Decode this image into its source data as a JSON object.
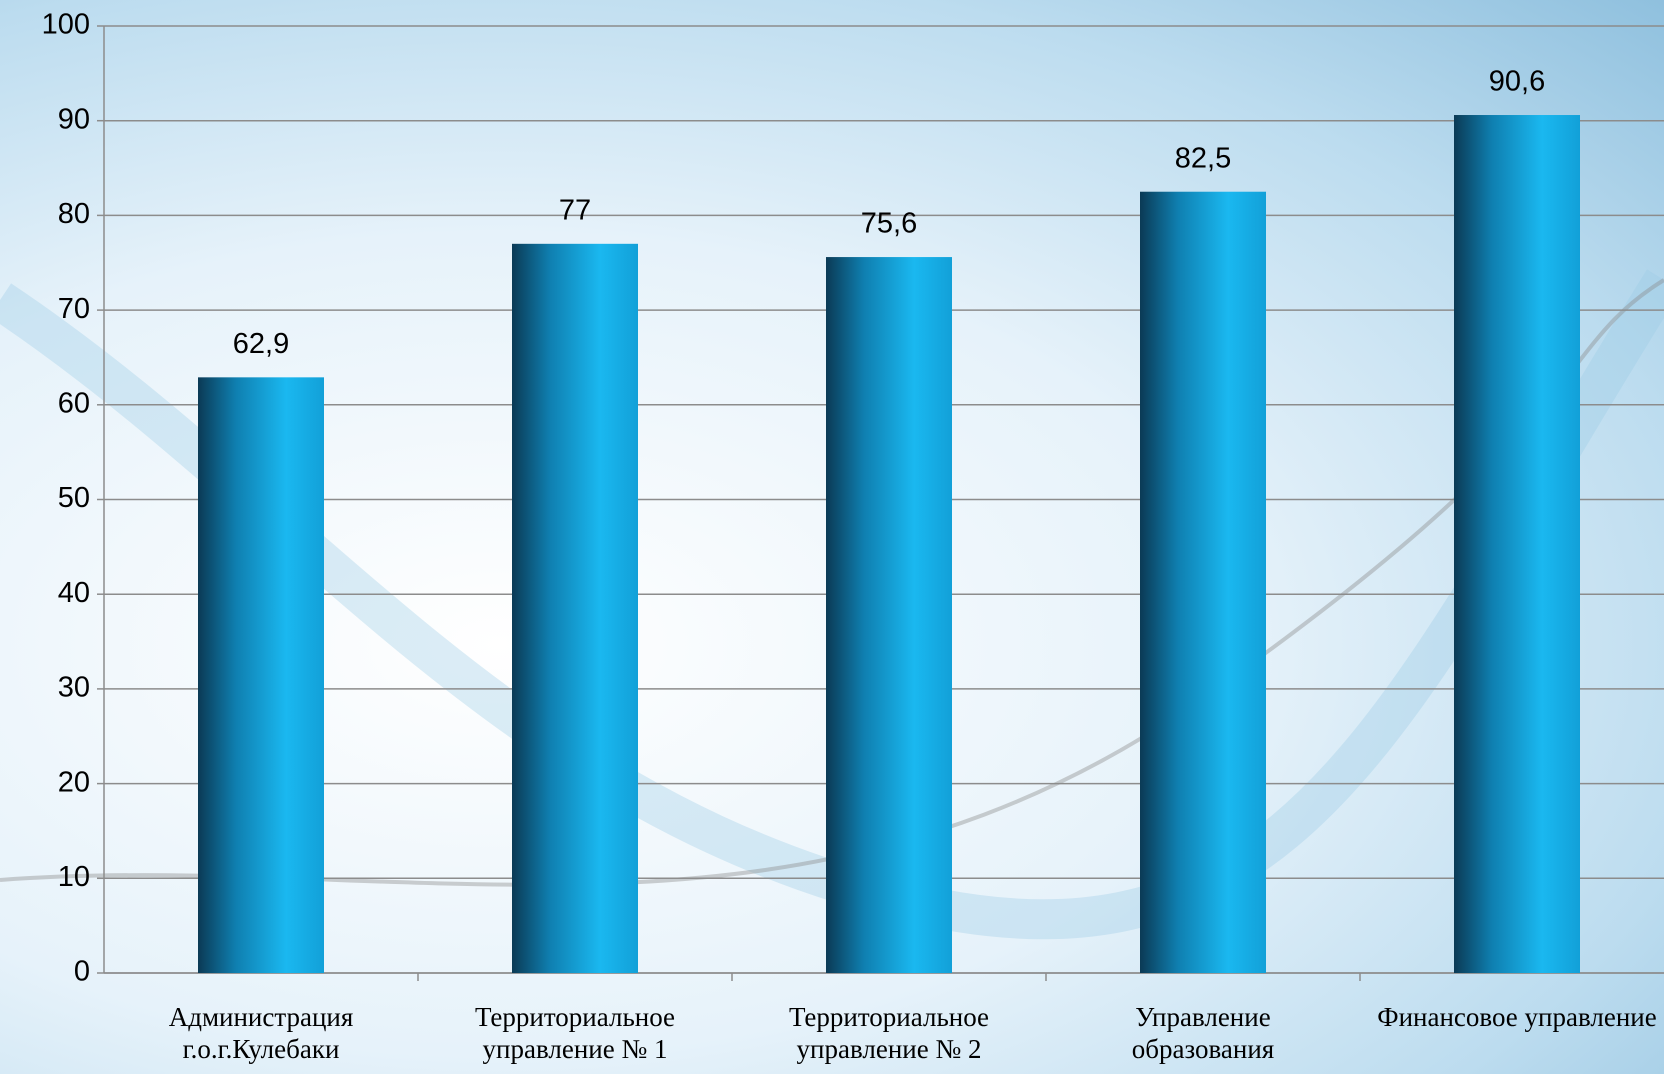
{
  "chart_data": {
    "type": "bar",
    "categories": [
      "Администрация г.о.г.Кулебаки",
      "Территориальное управление № 1",
      "Территориальное управление № 2",
      "Управление образования",
      "Финансовое управление"
    ],
    "values": [
      62.9,
      77,
      75.6,
      82.5,
      90.6
    ],
    "value_labels": [
      "62,9",
      "77",
      "75,6",
      "82,5",
      "90,6"
    ],
    "color": "#1ab0e8",
    "ylim": [
      0,
      100
    ],
    "yticks": [
      0,
      10,
      20,
      30,
      40,
      50,
      60,
      70,
      80,
      90,
      100
    ],
    "grid": true
  }
}
